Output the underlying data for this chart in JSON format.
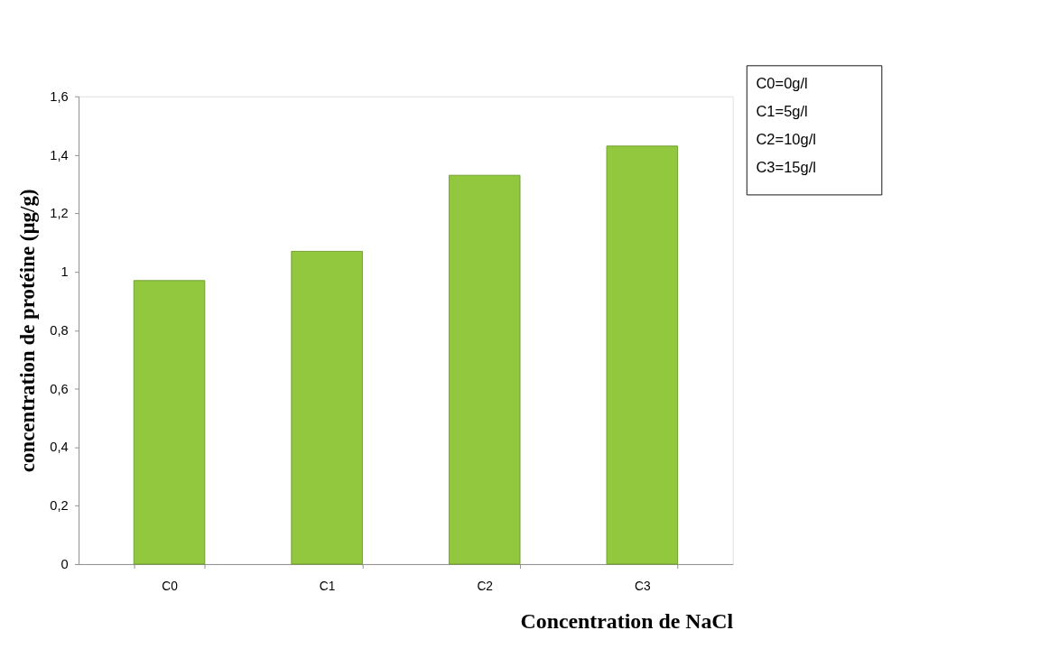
{
  "chart_data": {
    "type": "bar",
    "xlabel": "Concentration de NaCl",
    "ylabel": "concentration de protéine (µg/g)",
    "categories": [
      "C0",
      "C1",
      "C2",
      "C3"
    ],
    "values": [
      0.97,
      1.07,
      1.33,
      1.43
    ],
    "color": "#92c83e",
    "ylim": [
      0,
      1.6
    ],
    "yticks": [
      {
        "value": 0,
        "label": "0"
      },
      {
        "value": 0.2,
        "label": "0,2"
      },
      {
        "value": 0.4,
        "label": "0,4"
      },
      {
        "value": 0.6,
        "label": "0,6"
      },
      {
        "value": 0.8,
        "label": "0,8"
      },
      {
        "value": 1,
        "label": "1"
      },
      {
        "value": 1.2,
        "label": "1,2"
      },
      {
        "value": 1.4,
        "label": "1,4"
      },
      {
        "value": 1.6,
        "label": "1,6"
      }
    ],
    "annotations": [
      "C0=0g/l",
      "C1=5g/l",
      "C2=10g/l",
      "C3=15g/l"
    ],
    "grid": false
  }
}
